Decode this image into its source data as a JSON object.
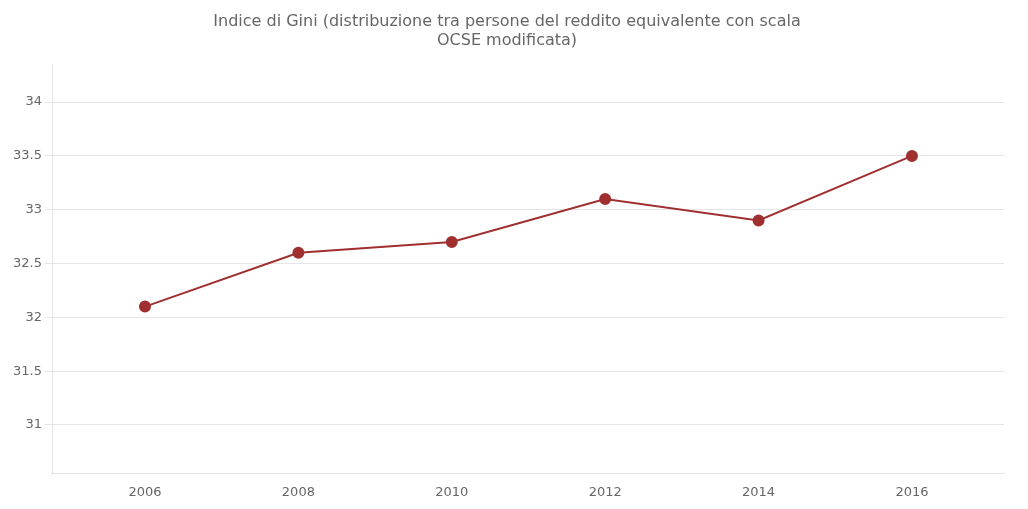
{
  "chart_data": {
    "type": "line",
    "title": "Indice di Gini (distribuzione tra persone del reddito equivalente con scala\nOCSE modificata)",
    "x": [
      2006,
      2008,
      2010,
      2012,
      2014,
      2016
    ],
    "values": [
      32.1,
      32.6,
      32.7,
      33.1,
      32.9,
      33.5
    ],
    "color": "#a03030",
    "marker": "circle",
    "xlim": [
      2004.8,
      2017.2
    ],
    "xticks": [
      2006,
      2008,
      2010,
      2012,
      2014,
      2016
    ],
    "ylim": [
      30.55,
      34.35
    ],
    "yticks": [
      31,
      31.5,
      32,
      32.5,
      33,
      33.5,
      34
    ],
    "grid": true
  }
}
